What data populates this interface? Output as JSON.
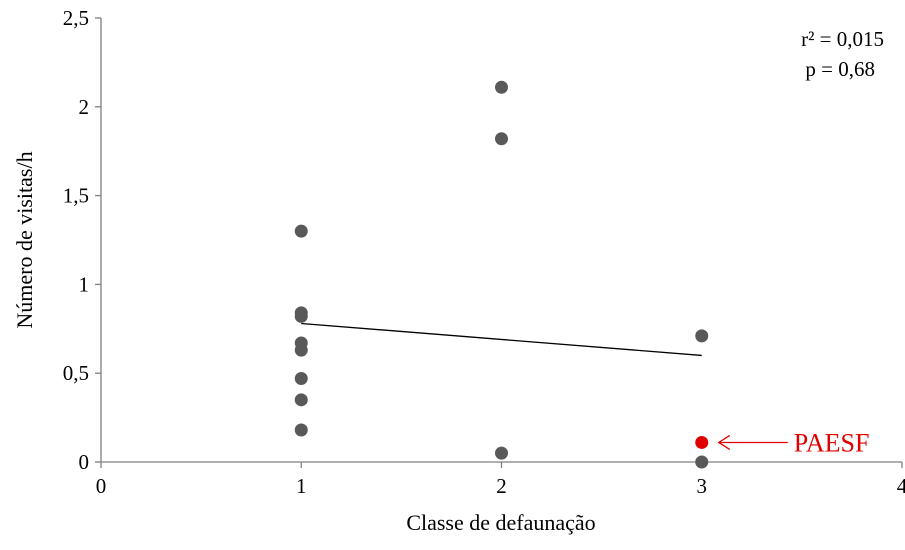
{
  "chart_data": {
    "type": "scatter",
    "title": "",
    "xlabel": "Classe de defaunação",
    "ylabel": "Número de visitas/h",
    "xlim": [
      0,
      4
    ],
    "ylim": [
      0,
      2.5
    ],
    "x_ticks": [
      "0",
      "1",
      "2",
      "3",
      "4"
    ],
    "y_ticks": [
      "0",
      "0,5",
      "1",
      "1,5",
      "2",
      "2,5"
    ],
    "grid": false,
    "series": [
      {
        "color": "#595959",
        "points": [
          {
            "x": 1,
            "y": 1.3
          },
          {
            "x": 1,
            "y": 0.84
          },
          {
            "x": 1,
            "y": 0.82
          },
          {
            "x": 1,
            "y": 0.67
          },
          {
            "x": 1,
            "y": 0.63
          },
          {
            "x": 1,
            "y": 0.47
          },
          {
            "x": 1,
            "y": 0.35
          },
          {
            "x": 1,
            "y": 0.18
          },
          {
            "x": 2,
            "y": 2.11
          },
          {
            "x": 2,
            "y": 1.82
          },
          {
            "x": 2,
            "y": 0.05
          },
          {
            "x": 3,
            "y": 0.71
          },
          {
            "x": 3,
            "y": 0.0
          }
        ]
      },
      {
        "color": "#e00000",
        "points": [
          {
            "x": 3,
            "y": 0.11
          }
        ]
      }
    ],
    "trendline": {
      "x": [
        1,
        3
      ],
      "y": [
        0.78,
        0.6
      ],
      "color": "#000000"
    },
    "annotations": {
      "r2": "r² = 0,015",
      "p": "p = 0,68",
      "callout_label": "PAESF",
      "callout_target": {
        "x": 3,
        "y": 0.11
      },
      "callout_color": "#e00000"
    }
  }
}
